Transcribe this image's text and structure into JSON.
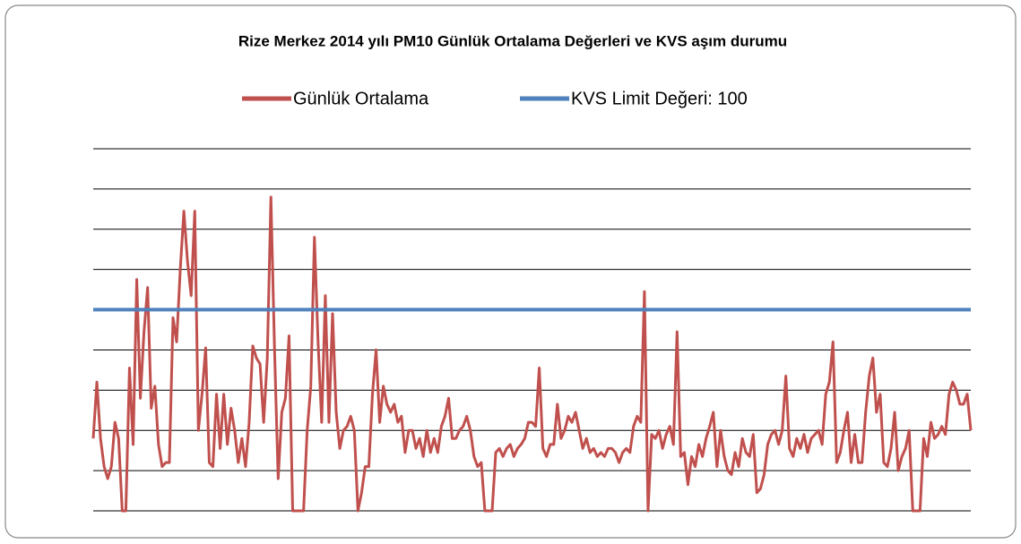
{
  "chart_data": {
    "type": "line",
    "title": "Rize Merkez 2014 yılı PM10 Günlük Ortalama Değerleri ve KVS aşım durumu",
    "series": [
      {
        "name": "Günlük Ortalama",
        "color": "#c0504d",
        "values": [
          36,
          64,
          36,
          22,
          16,
          22,
          44,
          36,
          0,
          0,
          71,
          33,
          115,
          56,
          89,
          111,
          51,
          62,
          33,
          22,
          24,
          24,
          96,
          84,
          120,
          149,
          124,
          107,
          149,
          40,
          58,
          81,
          24,
          22,
          58,
          31,
          58,
          33,
          51,
          40,
          24,
          36,
          22,
          44,
          82,
          76,
          73,
          44,
          76,
          156,
          80,
          16,
          49,
          56,
          87,
          0,
          0,
          0,
          0,
          40,
          62,
          136,
          84,
          44,
          107,
          44,
          98,
          49,
          31,
          40,
          42,
          47,
          40,
          0,
          9,
          22,
          22,
          58,
          80,
          44,
          62,
          53,
          49,
          53,
          44,
          47,
          29,
          40,
          40,
          31,
          36,
          27,
          40,
          29,
          36,
          29,
          42,
          47,
          56,
          36,
          36,
          40,
          42,
          47,
          40,
          27,
          22,
          24,
          0,
          0,
          0,
          29,
          31,
          27,
          31,
          33,
          27,
          31,
          33,
          36,
          44,
          44,
          42,
          71,
          31,
          27,
          33,
          33,
          53,
          36,
          40,
          47,
          44,
          49,
          40,
          31,
          36,
          29,
          31,
          27,
          29,
          27,
          31,
          31,
          29,
          24,
          29,
          31,
          29,
          42,
          47,
          44,
          109,
          0,
          38,
          36,
          40,
          31,
          38,
          42,
          33,
          89,
          27,
          29,
          13,
          27,
          22,
          33,
          27,
          36,
          42,
          49,
          22,
          40,
          27,
          20,
          18,
          29,
          22,
          36,
          29,
          27,
          38,
          9,
          11,
          18,
          33,
          38,
          40,
          33,
          40,
          67,
          31,
          27,
          36,
          31,
          38,
          29,
          36,
          38,
          40,
          33,
          58,
          64,
          84,
          24,
          29,
          40,
          49,
          24,
          38,
          24,
          24,
          49,
          67,
          76,
          49,
          58,
          24,
          22,
          31,
          49,
          20,
          27,
          31,
          40,
          0,
          0,
          0,
          36,
          27,
          44,
          36,
          38,
          42,
          38,
          58,
          64,
          60,
          53,
          53,
          58,
          40
        ]
      }
    ],
    "reference_line": {
      "name": "KVS Limit Değeri: 100",
      "color": "#4f81bd",
      "value": 100
    },
    "ylim": [
      0,
      180
    ],
    "yticks": [
      0,
      20,
      40,
      60,
      80,
      100,
      120,
      140,
      160,
      180
    ],
    "grid": true,
    "legend": "top"
  }
}
